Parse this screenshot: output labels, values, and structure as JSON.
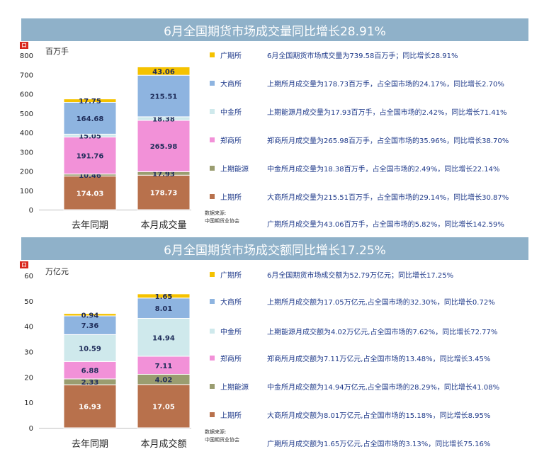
{
  "colors": {
    "guangqi": "#f5c200",
    "dashang": "#8eb4e0",
    "zhongjin": "#cfe9ec",
    "zhengshang": "#f291d8",
    "shangneng": "#9a9d70",
    "shangqi": "#b8714c"
  },
  "panels": [
    {
      "title": "6月全国期货市场成交量同比增长28.91%",
      "unit": "百万手",
      "source_line1": "数据来源:",
      "source_line2": "中国期货业协会",
      "legend": [
        {
          "name": "广期所",
          "color_key": "guangqi",
          "desc": "6月全国期货市场成交量为739.58百万手；同比增长28.91%"
        },
        {
          "name": "大商所",
          "color_key": "dashang",
          "desc": "上期所月成交量为178.73百万手，占全国市场的24.17%，同比增长2.70%"
        },
        {
          "name": "中金所",
          "color_key": "zhongjin",
          "desc": "上期能源月成交量为17.93百万手，占全国市场的2.42%，同比增长71.41%"
        },
        {
          "name": "郑商所",
          "color_key": "zhengshang",
          "desc": "郑商所月成交量为265.98百万手，占全国市场的35.96%，同比增长38.70%"
        },
        {
          "name": "上期能源",
          "color_key": "shangneng",
          "desc": "中金所月成交量为18.38百万手，占全国市场的2.49%，同比增长22.14%"
        },
        {
          "name": "上期所",
          "color_key": "shangqi",
          "desc": "大商所月成交量为215.51百万手，占全国市场的29.14%，同比增长30.87%"
        },
        {
          "name": "",
          "color_key": "",
          "desc": "广期所月成交量为43.06百万手，占全国市场的5.82%，同比增长142.59%"
        }
      ],
      "chart_data": {
        "type": "bar",
        "stacked": true,
        "categories": [
          "去年同期",
          "本月成交量"
        ],
        "ylim": [
          0,
          800
        ],
        "yticks": [
          0,
          100,
          200,
          300,
          400,
          500,
          600,
          700,
          800
        ],
        "series": [
          {
            "name": "上期所",
            "color_key": "shangqi",
            "values": [
              174.03,
              178.73
            ],
            "labels": [
              "174.03",
              "178.73"
            ]
          },
          {
            "name": "上期能源",
            "color_key": "shangneng",
            "values": [
              10.46,
              17.93
            ],
            "labels": [
              "10.46",
              "17.93"
            ]
          },
          {
            "name": "郑商所",
            "color_key": "zhengshang",
            "values": [
              191.76,
              265.98
            ],
            "labels": [
              "191.76",
              "265.98"
            ]
          },
          {
            "name": "中金所",
            "color_key": "zhongjin",
            "values": [
              15.05,
              18.38
            ],
            "labels": [
              "15.05",
              "18.38"
            ]
          },
          {
            "name": "大商所",
            "color_key": "dashang",
            "values": [
              164.68,
              215.51
            ],
            "labels": [
              "164.68",
              "215.51"
            ]
          },
          {
            "name": "广期所",
            "color_key": "guangqi",
            "values": [
              17.75,
              43.06
            ],
            "labels": [
              "17.75",
              "43.06"
            ]
          }
        ]
      }
    },
    {
      "title": "6月全国期货市场成交额同比增长17.25%",
      "unit": "万亿元",
      "source_line1": "数据来源:",
      "source_line2": "中国期货业协会",
      "legend": [
        {
          "name": "广期所",
          "color_key": "guangqi",
          "desc": "6月全国期货市场成交额为52.79万亿元；同比增长17.25%"
        },
        {
          "name": "大商所",
          "color_key": "dashang",
          "desc": "上期所月成交额为17.05万亿元,占全国市场的32.30%，同比增长0.72%"
        },
        {
          "name": "中金所",
          "color_key": "zhongjin",
          "desc": "上期能源月成交额为4.02万亿元,占全国市场的7.62%，同比增长72.77%"
        },
        {
          "name": "郑商所",
          "color_key": "zhengshang",
          "desc": "郑商所月成交额为7.11万亿元,占全国市场的13.48%，同比增长3.45%"
        },
        {
          "name": "上期能源",
          "color_key": "shangneng",
          "desc": "中金所月成交额为14.94万亿元,占全国市场的28.29%，同比增长41.08%"
        },
        {
          "name": "上期所",
          "color_key": "shangqi",
          "desc": "大商所月成交额为8.01万亿元,占全国市场的15.18%，同比增长8.95%"
        },
        {
          "name": "",
          "color_key": "",
          "desc": "广期所月成交额为1.65万亿元,占全国市场的3.13%，同比增长75.16%"
        }
      ],
      "chart_data": {
        "type": "bar",
        "stacked": true,
        "categories": [
          "去年同期",
          "本月成交额"
        ],
        "ylim": [
          0,
          60
        ],
        "yticks": [
          0,
          10,
          20,
          30,
          40,
          50,
          60
        ],
        "series": [
          {
            "name": "上期所",
            "color_key": "shangqi",
            "values": [
              16.93,
              17.05
            ],
            "labels": [
              "16.93",
              "17.05"
            ]
          },
          {
            "name": "上期能源",
            "color_key": "shangneng",
            "values": [
              2.33,
              4.02
            ],
            "labels": [
              "2.33",
              "4.02"
            ]
          },
          {
            "name": "郑商所",
            "color_key": "zhengshang",
            "values": [
              6.88,
              7.11
            ],
            "labels": [
              "6.88",
              "7.11"
            ]
          },
          {
            "name": "中金所",
            "color_key": "zhongjin",
            "values": [
              10.59,
              14.94
            ],
            "labels": [
              "10.59",
              "14.94"
            ]
          },
          {
            "name": "大商所",
            "color_key": "dashang",
            "values": [
              7.36,
              8.01
            ],
            "labels": [
              "7.36",
              "8.01"
            ]
          },
          {
            "name": "广期所",
            "color_key": "guangqi",
            "values": [
              0.94,
              1.65
            ],
            "labels": [
              "0.94",
              "1.65"
            ]
          }
        ]
      }
    }
  ]
}
